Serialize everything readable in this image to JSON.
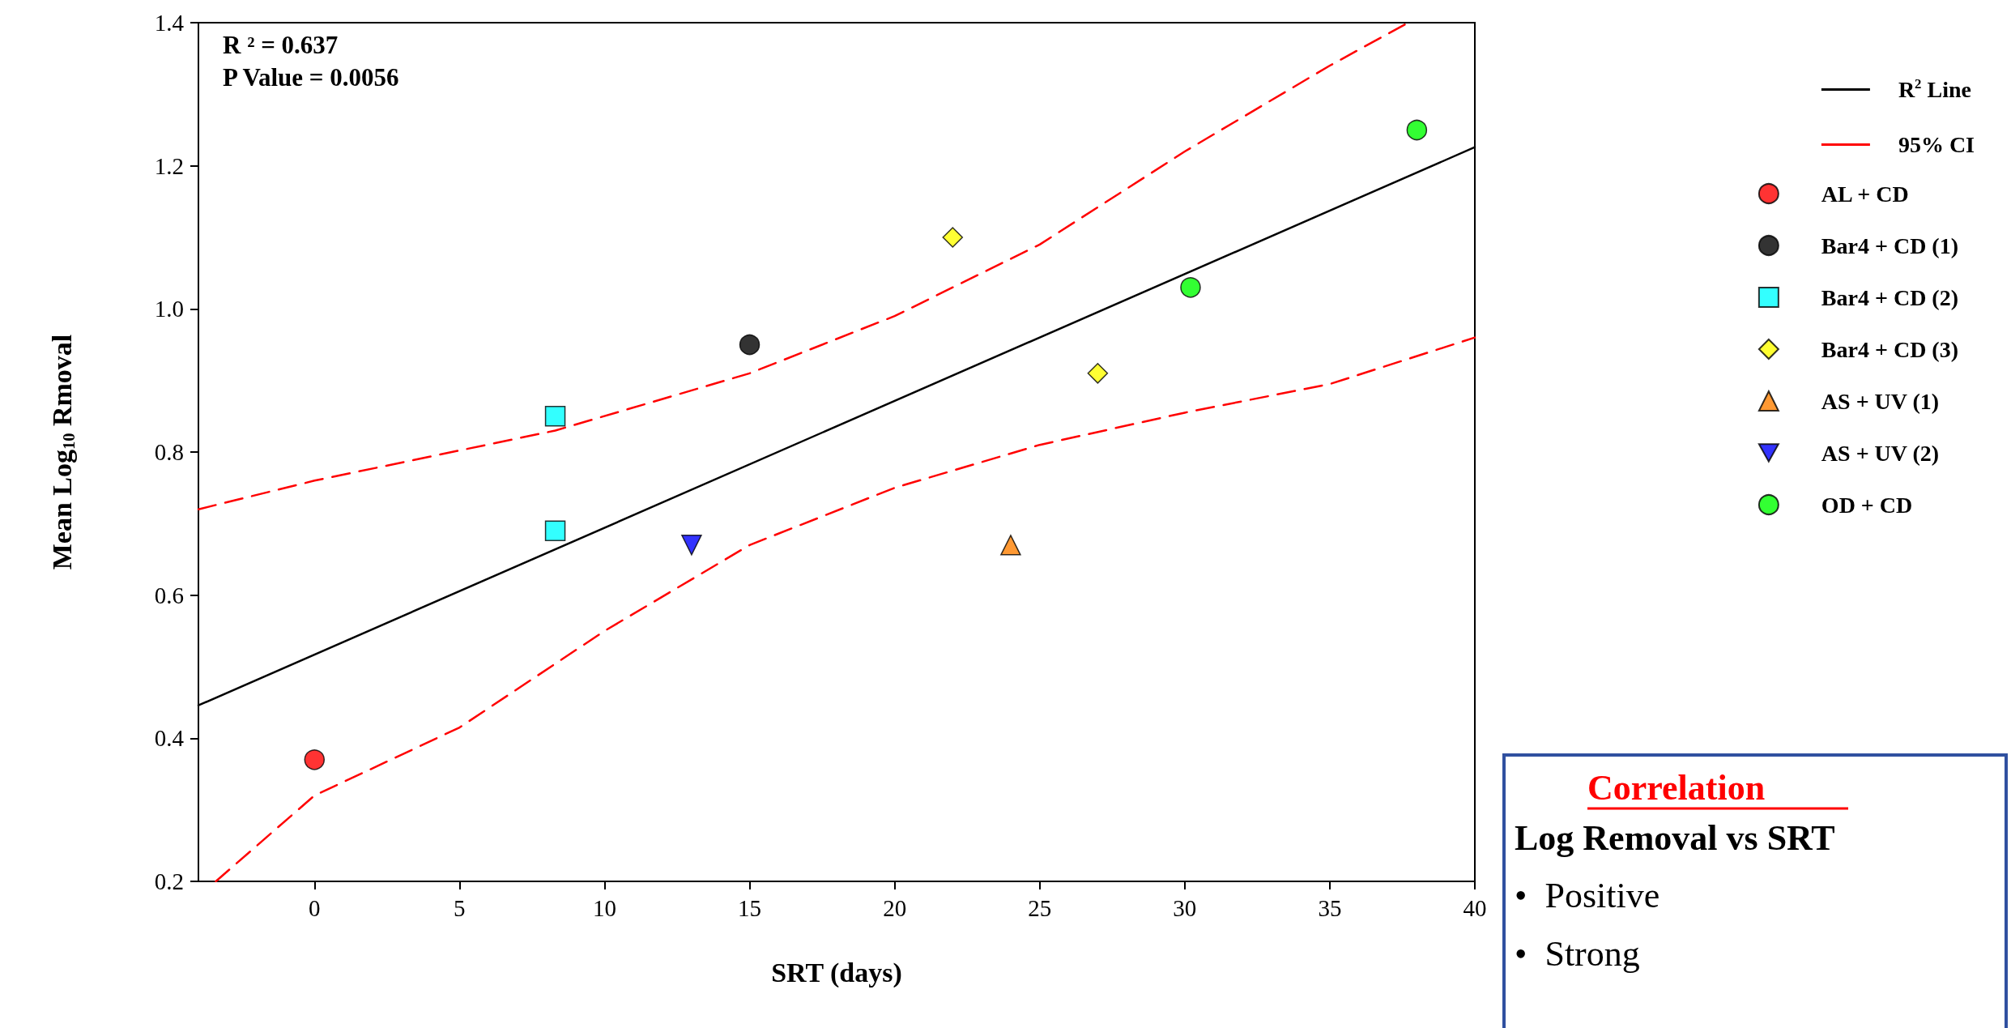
{
  "chart_data": {
    "type": "scatter",
    "xlabel": "SRT (days)",
    "ylabel": "Mean Log$_{10}$ Rmoval",
    "xlim": [
      -4,
      40
    ],
    "xticks": [
      0,
      5,
      10,
      15,
      20,
      25,
      30,
      35,
      40
    ],
    "ylim": [
      0.2,
      1.4
    ],
    "yticks": [
      0.2,
      0.4,
      0.6,
      0.8,
      {
        "value": 1,
        "label": "1.0"
      },
      1.2,
      1.4
    ],
    "grid": false,
    "legend": "right",
    "annotations": [
      "R ² = 0.637",
      "P Value = 0.0056",
      "Correlation",
      "Log Removal vs SRT",
      "•  Positive",
      "•  Strong"
    ],
    "series": [
      {
        "name": "R$^{2}$ Line",
        "type": "line",
        "color": "#000000",
        "line_style": "solid",
        "marker": "none",
        "x": [
          -4,
          40
        ],
        "values": [
          0.446,
          1.226
        ]
      },
      {
        "name": "95% CI",
        "type": "line",
        "color": "#ff0000",
        "line_style": "dashed",
        "marker": "none",
        "x": [
          -4,
          0,
          8.3,
          15,
          20,
          25,
          30,
          35,
          37.7
        ],
        "values": [
          0.72,
          0.76,
          0.83,
          0.91,
          0.99,
          1.09,
          1.22,
          1.34,
          1.4
        ]
      },
      {
        "type": "line",
        "color": "#ff0000",
        "line_style": "dashed",
        "marker": "none",
        "x": [
          -3.4,
          0,
          5,
          10,
          15,
          20,
          25,
          30,
          35,
          40
        ],
        "values": [
          0.2,
          0.32,
          0.415,
          0.55,
          0.67,
          0.75,
          0.81,
          0.855,
          0.895,
          0.96
        ]
      },
      {
        "name": "AL + CD",
        "color": "#ff0000",
        "marker": "circle",
        "x": [
          0
        ],
        "values": [
          0.37
        ]
      },
      {
        "name": "Bar4 + CD (1)",
        "color": "#000000",
        "marker": "circle",
        "x": [
          15
        ],
        "values": [
          0.95
        ]
      },
      {
        "name": "Bar4 + CD (2)",
        "color": "#00ffff",
        "marker": "square",
        "x": [
          8.3,
          8.3
        ],
        "values": [
          0.85,
          0.69
        ]
      },
      {
        "name": "Bar4 + CD (3)",
        "color": "#ffff00",
        "marker": "diamond",
        "x": [
          22,
          27
        ],
        "values": [
          1.1,
          0.91
        ]
      },
      {
        "name": "AS + UV (1)",
        "color": "#ff8000",
        "marker": "triangle",
        "x": [
          24
        ],
        "values": [
          0.67
        ]
      },
      {
        "name": "AS + UV (2)",
        "color": "#0000ff",
        "marker": "triangle-down",
        "x": [
          13
        ],
        "values": [
          0.67
        ]
      },
      {
        "name": "OD + CD",
        "color": "#00ff00",
        "marker": "circle",
        "x": [
          30.2,
          38
        ],
        "values": [
          1.03,
          1.25
        ]
      }
    ]
  }
}
